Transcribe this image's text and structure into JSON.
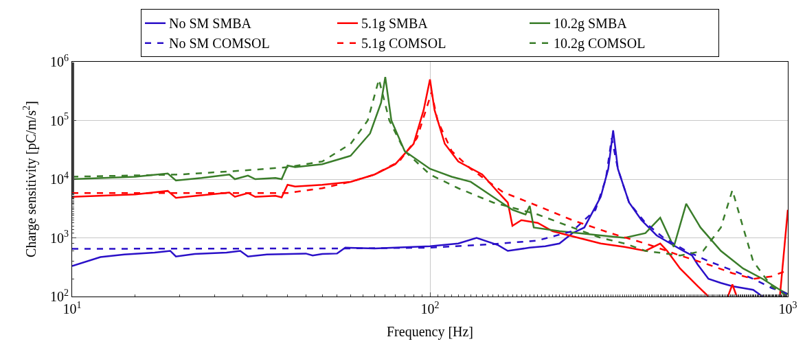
{
  "chart_data": {
    "type": "line",
    "xlabel": "Frequency [Hz]",
    "ylabel": "Charge sensitivity [pC/m/s$^{2}$]",
    "log": "xy",
    "grid": true,
    "legend": "top",
    "marker": "none",
    "xlim": [
      10,
      1000
    ],
    "xticks": [
      {
        "value": 10,
        "label": "10$^{1}$"
      },
      {
        "value": 100,
        "label": "10$^{2}$"
      },
      {
        "value": 1000,
        "label": "10$^{3}$"
      }
    ],
    "ylim": [
      100,
      1000000
    ],
    "yticks": [
      {
        "value": 100,
        "label": "10$^{2}$"
      },
      {
        "value": 1000,
        "label": "10$^{3}$"
      },
      {
        "value": 10000,
        "label": "10$^{4}$"
      },
      {
        "value": 100000,
        "label": "10$^{5}$"
      },
      {
        "value": 1000000,
        "label": "10$^{6}$"
      }
    ],
    "series": [
      {
        "name": "No SM SMBA",
        "color": "#2a10c8",
        "line_style": "solid",
        "x": [
          10,
          12,
          14,
          17,
          18.8,
          19.5,
          22,
          27,
          29.5,
          31,
          35,
          45,
          47,
          50,
          55,
          58,
          70,
          80,
          100,
          120,
          135,
          155,
          165,
          190,
          210,
          230,
          250,
          270,
          300,
          315,
          325,
          335,
          360,
          390,
          430,
          470,
          510,
          540,
          560,
          600,
          650,
          700,
          800,
          850
        ],
        "values": [
          330,
          470,
          520,
          560,
          600,
          480,
          530,
          560,
          600,
          480,
          520,
          540,
          500,
          530,
          540,
          680,
          660,
          680,
          720,
          800,
          1000,
          750,
          600,
          680,
          720,
          800,
          1200,
          1500,
          5000,
          15000,
          68000,
          15000,
          4000,
          2000,
          1100,
          800,
          600,
          500,
          350,
          200,
          170,
          150,
          130,
          100
        ]
      },
      {
        "name": "5.1g SMBA",
        "color": "#ff0000",
        "line_style": "solid",
        "x": [
          10,
          15,
          18.5,
          19.5,
          23,
          27.5,
          28.5,
          31,
          32.5,
          37,
          38.5,
          40,
          42,
          50,
          60,
          70,
          80,
          90,
          96,
          100,
          103,
          110,
          120,
          140,
          155,
          165,
          170,
          180,
          200,
          220,
          260,
          300,
          350,
          400,
          440,
          460,
          500,
          560,
          600,
          650,
          680,
          700,
          720,
          800,
          950,
          1000
        ],
        "values": [
          5000,
          5500,
          6300,
          4800,
          5300,
          5900,
          5000,
          5800,
          5000,
          5200,
          4900,
          8000,
          7500,
          8000,
          9000,
          12000,
          18000,
          40000,
          150000,
          500000,
          150000,
          40000,
          20000,
          12000,
          6000,
          4000,
          1600,
          2000,
          1800,
          1300,
          1000,
          800,
          700,
          600,
          800,
          600,
          300,
          150,
          100,
          null,
          100,
          160,
          100,
          null,
          100,
          3000
        ]
      },
      {
        "name": "10.2g SMBA",
        "color": "#3a7d2a",
        "line_style": "solid",
        "x": [
          10,
          15,
          18.5,
          19.5,
          23,
          27.5,
          28.5,
          31,
          32.5,
          37,
          38.5,
          40,
          42,
          50,
          60,
          68,
          73,
          75,
          78,
          85,
          100,
          115,
          130,
          150,
          170,
          185,
          190,
          195,
          230,
          300,
          350,
          400,
          440,
          480,
          520,
          570,
          650,
          750,
          850,
          950,
          1000
        ],
        "values": [
          10000,
          11000,
          12500,
          9500,
          10500,
          12000,
          10000,
          11500,
          10000,
          10500,
          10000,
          17000,
          16000,
          18000,
          25000,
          60000,
          200000,
          550000,
          100000,
          30000,
          15000,
          11000,
          9000,
          5000,
          3000,
          2500,
          3500,
          1500,
          1300,
          1100,
          1000,
          1200,
          2200,
          700,
          3800,
          1500,
          600,
          300,
          200,
          130,
          110
        ]
      },
      {
        "name": "No SM COMSOL",
        "color": "#2a10c8",
        "line_style": "dashed",
        "x": [
          10,
          60,
          100,
          150,
          200,
          250,
          290,
          310,
          322,
          335,
          360,
          400,
          450,
          520,
          600,
          700,
          800,
          900,
          1000
        ],
        "values": [
          650,
          660,
          680,
          780,
          900,
          1300,
          3000,
          10000,
          50000,
          15000,
          4000,
          1800,
          1000,
          600,
          400,
          280,
          200,
          140,
          110
        ]
      },
      {
        "name": "5.1g COMSOL",
        "color": "#ff0000",
        "line_style": "dashed",
        "x": [
          10,
          40,
          50,
          60,
          70,
          82,
          92,
          101,
          105,
          115,
          130,
          160,
          200,
          250,
          320,
          400,
          500,
          600,
          700,
          800,
          900,
          1000
        ],
        "values": [
          5800,
          5800,
          7000,
          9000,
          12000,
          20000,
          50000,
          300000,
          100000,
          30000,
          15000,
          6000,
          3500,
          2000,
          1200,
          800,
          500,
          350,
          250,
          200,
          220,
          280
        ]
      },
      {
        "name": "10.2g COMSOL",
        "color": "#3a7d2a",
        "line_style": "dashed",
        "x": [
          10,
          20,
          30,
          40,
          50,
          60,
          67,
          72,
          77,
          85,
          100,
          120,
          150,
          200,
          250,
          300,
          350,
          400,
          500,
          580,
          650,
          700,
          750,
          800,
          900,
          1000
        ],
        "values": [
          11000,
          12000,
          14000,
          16000,
          20000,
          40000,
          100000,
          500000,
          100000,
          30000,
          12000,
          7000,
          4000,
          2500,
          1500,
          1000,
          800,
          600,
          500,
          600,
          1500,
          6500,
          1500,
          400,
          150,
          100
        ]
      }
    ]
  }
}
